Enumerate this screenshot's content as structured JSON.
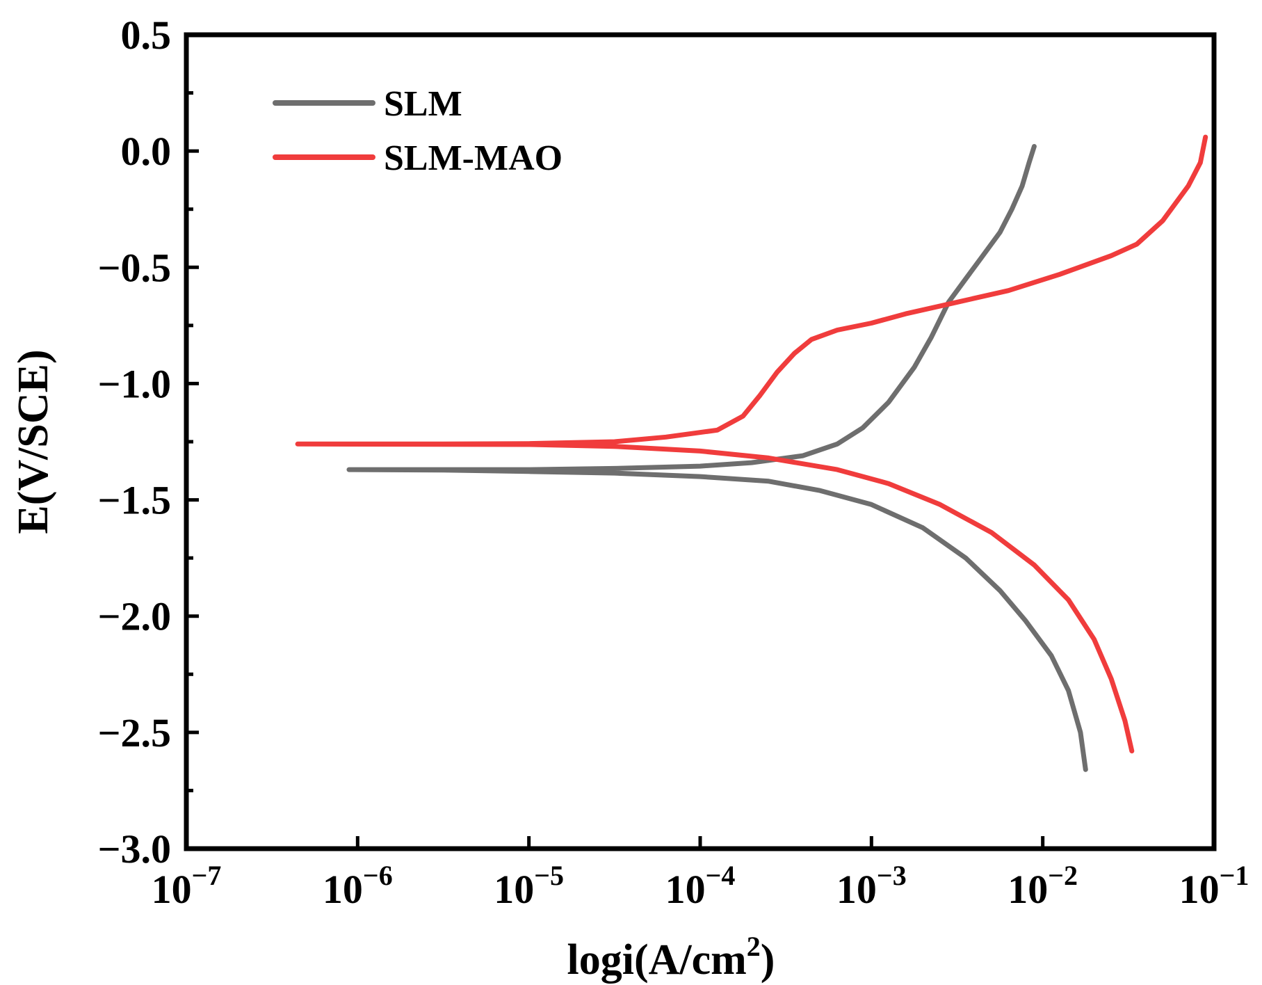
{
  "chart_data": {
    "type": "line",
    "title": "",
    "xlabel": {
      "text": "logi(A/cm",
      "sup": "2",
      "tail": ")"
    },
    "ylabel": "E(V/SCE)",
    "xscale": "log",
    "xlim_exp": [
      -7,
      -1
    ],
    "ylim": [
      -3.0,
      0.5
    ],
    "x_ticks": [
      {
        "base": "10",
        "exp": "−7"
      },
      {
        "base": "10",
        "exp": "−6"
      },
      {
        "base": "10",
        "exp": "−5"
      },
      {
        "base": "10",
        "exp": "−4"
      },
      {
        "base": "10",
        "exp": "−3"
      },
      {
        "base": "10",
        "exp": "−2"
      },
      {
        "base": "10",
        "exp": "−1"
      }
    ],
    "y_ticks": [
      {
        "value": 0.5,
        "label": "0.5"
      },
      {
        "value": 0.0,
        "label": "0.0"
      },
      {
        "value": -0.5,
        "label": "−0.5"
      },
      {
        "value": -1.0,
        "label": "−1.0"
      },
      {
        "value": -1.5,
        "label": "−1.5"
      },
      {
        "value": -2.0,
        "label": "−2.0"
      },
      {
        "value": -2.5,
        "label": "−2.5"
      },
      {
        "value": -3.0,
        "label": "−3.0"
      }
    ],
    "legend_position": "top-left",
    "series": [
      {
        "name": "SLM",
        "color": "#6e6e6e",
        "points": [
          [
            -6.05,
            -1.37
          ],
          [
            -5.5,
            -1.37
          ],
          [
            -5.0,
            -1.37
          ],
          [
            -4.5,
            -1.365
          ],
          [
            -4.0,
            -1.355
          ],
          [
            -3.7,
            -1.34
          ],
          [
            -3.4,
            -1.31
          ],
          [
            -3.2,
            -1.26
          ],
          [
            -3.05,
            -1.19
          ],
          [
            -2.9,
            -1.08
          ],
          [
            -2.75,
            -0.93
          ],
          [
            -2.65,
            -0.8
          ],
          [
            -2.55,
            -0.65
          ],
          [
            -2.45,
            -0.55
          ],
          [
            -2.35,
            -0.45
          ],
          [
            -2.25,
            -0.35
          ],
          [
            -2.18,
            -0.25
          ],
          [
            -2.12,
            -0.15
          ],
          [
            -2.08,
            -0.05
          ],
          [
            -2.05,
            0.02
          ],
          null,
          [
            -6.05,
            -1.37
          ],
          [
            -5.5,
            -1.372
          ],
          [
            -5.0,
            -1.378
          ],
          [
            -4.5,
            -1.385
          ],
          [
            -4.0,
            -1.4
          ],
          [
            -3.6,
            -1.42
          ],
          [
            -3.3,
            -1.46
          ],
          [
            -3.0,
            -1.52
          ],
          [
            -2.7,
            -1.62
          ],
          [
            -2.45,
            -1.75
          ],
          [
            -2.25,
            -1.89
          ],
          [
            -2.1,
            -2.02
          ],
          [
            -1.95,
            -2.17
          ],
          [
            -1.85,
            -2.32
          ],
          [
            -1.78,
            -2.5
          ],
          [
            -1.75,
            -2.66
          ]
        ]
      },
      {
        "name": "SLM-MAO",
        "color": "#f03c3c",
        "points": [
          [
            -6.35,
            -1.26
          ],
          [
            -5.5,
            -1.26
          ],
          [
            -5.0,
            -1.258
          ],
          [
            -4.5,
            -1.25
          ],
          [
            -4.2,
            -1.23
          ],
          [
            -3.9,
            -1.2
          ],
          [
            -3.75,
            -1.14
          ],
          [
            -3.65,
            -1.05
          ],
          [
            -3.55,
            -0.95
          ],
          [
            -3.45,
            -0.87
          ],
          [
            -3.35,
            -0.81
          ],
          [
            -3.2,
            -0.77
          ],
          [
            -3.0,
            -0.74
          ],
          [
            -2.8,
            -0.7
          ],
          [
            -2.5,
            -0.65
          ],
          [
            -2.2,
            -0.6
          ],
          [
            -1.9,
            -0.53
          ],
          [
            -1.6,
            -0.45
          ],
          [
            -1.45,
            -0.4
          ],
          [
            -1.3,
            -0.3
          ],
          [
            -1.15,
            -0.15
          ],
          [
            -1.08,
            -0.05
          ],
          [
            -1.05,
            0.06
          ],
          null,
          [
            -6.35,
            -1.26
          ],
          [
            -5.0,
            -1.262
          ],
          [
            -4.5,
            -1.27
          ],
          [
            -4.0,
            -1.29
          ],
          [
            -3.6,
            -1.32
          ],
          [
            -3.2,
            -1.37
          ],
          [
            -2.9,
            -1.43
          ],
          [
            -2.6,
            -1.52
          ],
          [
            -2.3,
            -1.64
          ],
          [
            -2.05,
            -1.78
          ],
          [
            -1.85,
            -1.93
          ],
          [
            -1.7,
            -2.1
          ],
          [
            -1.6,
            -2.27
          ],
          [
            -1.52,
            -2.45
          ],
          [
            -1.48,
            -2.58
          ]
        ]
      }
    ]
  }
}
